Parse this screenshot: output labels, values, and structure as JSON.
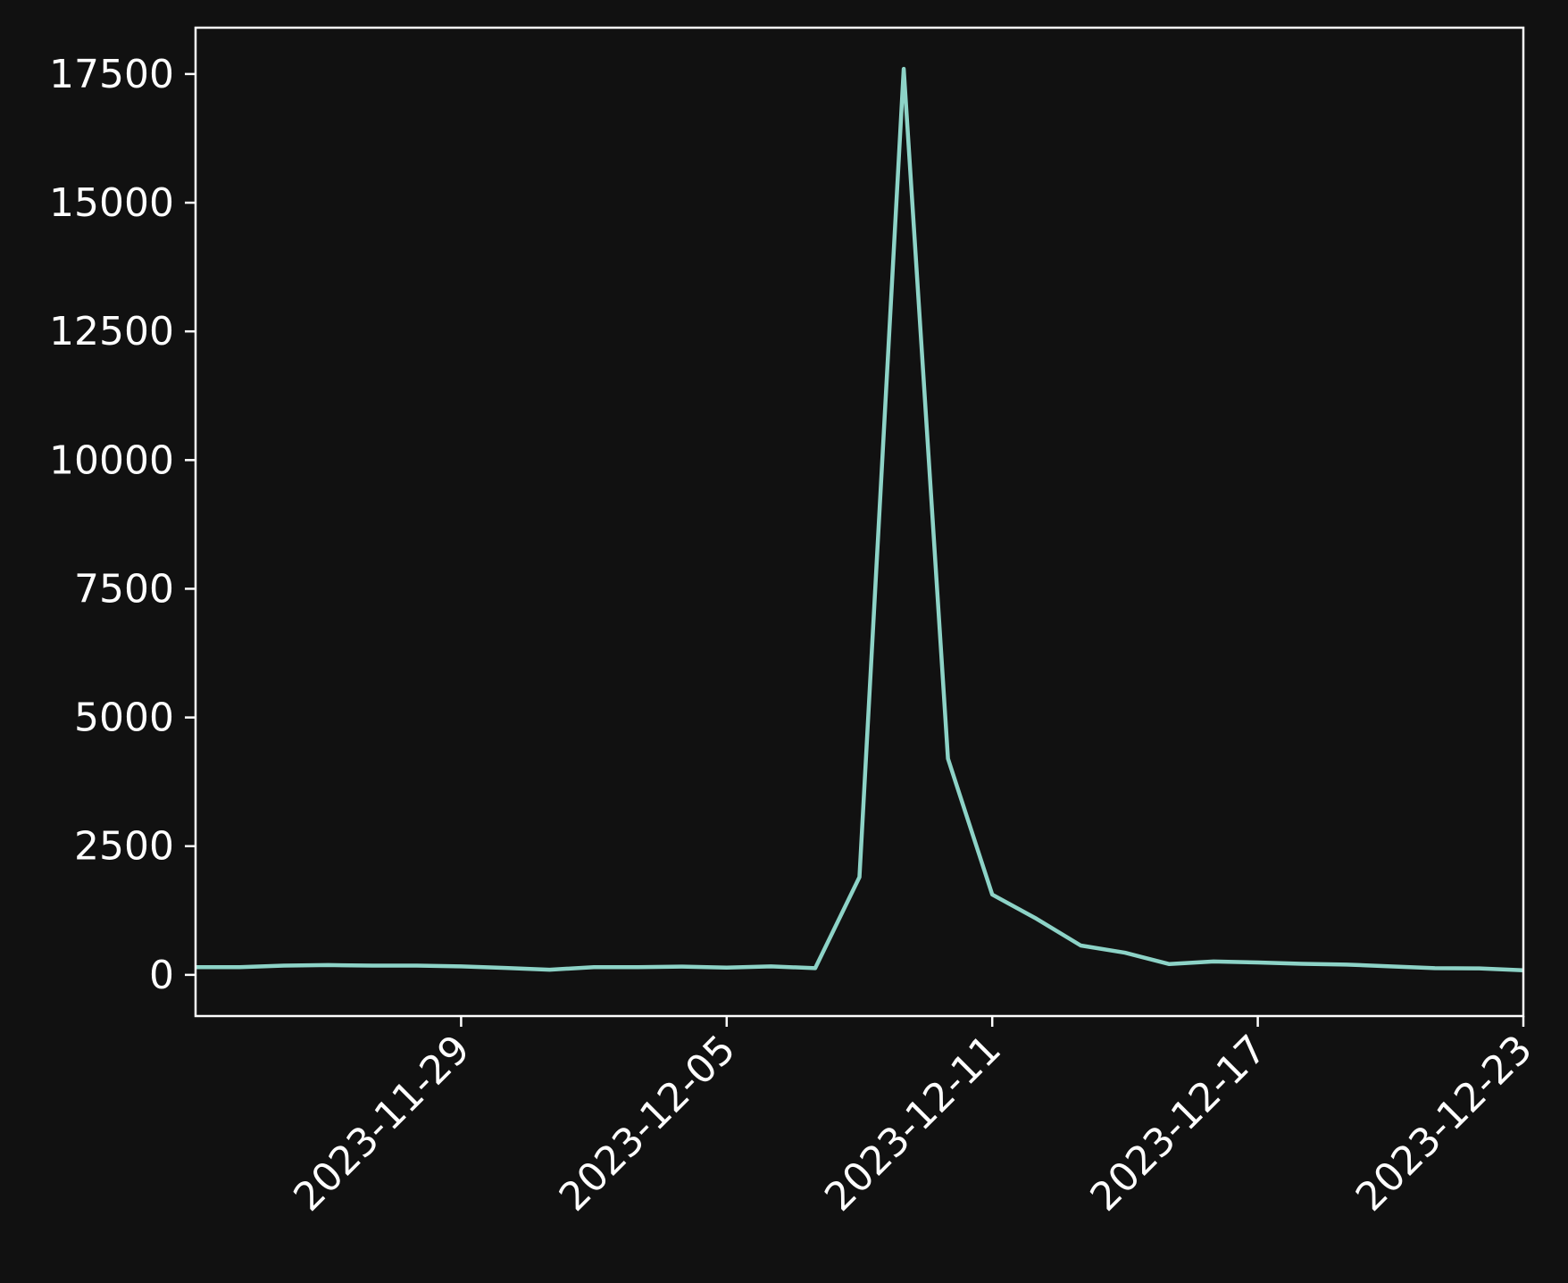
{
  "colors": {
    "background": "#111111",
    "axes": "#ffffff",
    "text": "#ffffff",
    "series_line": "#8dd3c7"
  },
  "chart_data": {
    "type": "line",
    "title": "",
    "xlabel": "",
    "ylabel": "",
    "grid": false,
    "legend": "none",
    "xlim": [
      "2023-11-23",
      "2023-12-23"
    ],
    "ylim": [
      -800,
      18400
    ],
    "x_ticks": [
      "2023-11-29",
      "2023-12-05",
      "2023-12-11",
      "2023-12-17",
      "2023-12-23"
    ],
    "y_ticks": [
      0,
      2500,
      5000,
      7500,
      10000,
      12500,
      15000,
      17500
    ],
    "series": [
      {
        "color": "#8dd3c7",
        "points": [
          {
            "x": "2023-11-23",
            "y": 150
          },
          {
            "x": "2023-11-24",
            "y": 150
          },
          {
            "x": "2023-11-25",
            "y": 180
          },
          {
            "x": "2023-11-26",
            "y": 190
          },
          {
            "x": "2023-11-27",
            "y": 180
          },
          {
            "x": "2023-11-28",
            "y": 180
          },
          {
            "x": "2023-11-29",
            "y": 165
          },
          {
            "x": "2023-11-30",
            "y": 135
          },
          {
            "x": "2023-12-01",
            "y": 100
          },
          {
            "x": "2023-12-02",
            "y": 150
          },
          {
            "x": "2023-12-03",
            "y": 150
          },
          {
            "x": "2023-12-04",
            "y": 160
          },
          {
            "x": "2023-12-05",
            "y": 140
          },
          {
            "x": "2023-12-06",
            "y": 165
          },
          {
            "x": "2023-12-07",
            "y": 130
          },
          {
            "x": "2023-12-08",
            "y": 1900
          },
          {
            "x": "2023-12-09",
            "y": 17600
          },
          {
            "x": "2023-12-10",
            "y": 4200
          },
          {
            "x": "2023-12-11",
            "y": 1560
          },
          {
            "x": "2023-12-12",
            "y": 1090
          },
          {
            "x": "2023-12-13",
            "y": 570
          },
          {
            "x": "2023-12-14",
            "y": 430
          },
          {
            "x": "2023-12-15",
            "y": 210
          },
          {
            "x": "2023-12-16",
            "y": 260
          },
          {
            "x": "2023-12-17",
            "y": 240
          },
          {
            "x": "2023-12-18",
            "y": 215
          },
          {
            "x": "2023-12-19",
            "y": 200
          },
          {
            "x": "2023-12-20",
            "y": 165
          },
          {
            "x": "2023-12-21",
            "y": 130
          },
          {
            "x": "2023-12-22",
            "y": 125
          },
          {
            "x": "2023-12-23",
            "y": 90
          }
        ]
      }
    ]
  }
}
